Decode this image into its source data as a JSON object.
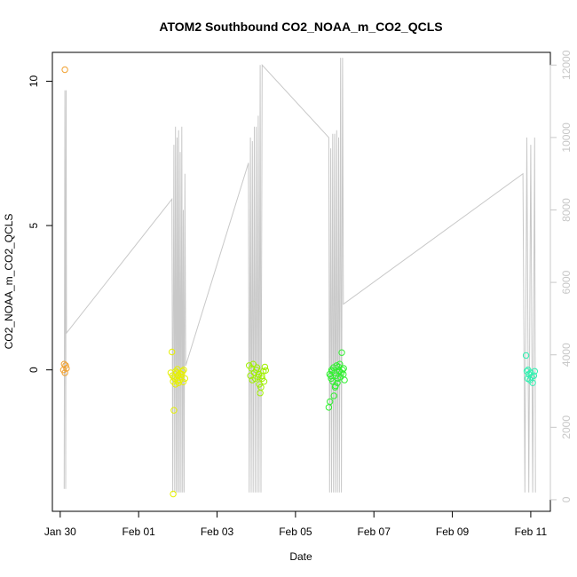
{
  "chart_data": {
    "type": "scatter",
    "title": "ATOM2 Southbound CO2_NOAA_m_CO2_QCLS",
    "xlabel": "Date",
    "ylabel": "CO2_NOAA_m_CO2_QCLS",
    "y2label": "",
    "xlim": [
      -0.2,
      12.5
    ],
    "ylim": [
      -4.9,
      11.0
    ],
    "y2lim": [
      -320,
      12350
    ],
    "x_unit": "days since Jan 30",
    "x_ticks": [
      {
        "value": 0,
        "label": "Jan 30"
      },
      {
        "value": 2,
        "label": "Feb 01"
      },
      {
        "value": 4,
        "label": "Feb 03"
      },
      {
        "value": 6,
        "label": "Feb 05"
      },
      {
        "value": 8,
        "label": "Feb 07"
      },
      {
        "value": 10,
        "label": "Feb 09"
      },
      {
        "value": 12,
        "label": "Feb 11"
      }
    ],
    "y_ticks": [
      {
        "value": 0,
        "label": "0"
      },
      {
        "value": 5,
        "label": "5"
      },
      {
        "value": 10,
        "label": "10"
      }
    ],
    "y2_ticks": [
      {
        "value": 0,
        "label": "0"
      },
      {
        "value": 2000,
        "label": "2000"
      },
      {
        "value": 4000,
        "label": "4000"
      },
      {
        "value": 6000,
        "label": "6000"
      },
      {
        "value": 8000,
        "label": "8000"
      },
      {
        "value": 10000,
        "label": "10000"
      },
      {
        "value": 12000,
        "label": "12000"
      }
    ],
    "grid": false,
    "legend": "none",
    "altitude_line_color": "#c8c8c8",
    "series": [
      {
        "color": "#f0a030",
        "points": [
          [
            0.12,
            10.4
          ],
          [
            0.1,
            0.2
          ],
          [
            0.14,
            0.15
          ],
          [
            0.16,
            0.05
          ],
          [
            0.08,
            0.0
          ],
          [
            0.12,
            -0.1
          ]
        ]
      },
      {
        "color": "#e6f000",
        "points": [
          [
            2.85,
            0.62
          ],
          [
            2.9,
            -1.4
          ],
          [
            2.88,
            -4.3
          ],
          [
            2.82,
            -0.1
          ],
          [
            2.9,
            -0.25
          ],
          [
            2.95,
            -0.05
          ],
          [
            3.0,
            -0.2
          ],
          [
            3.05,
            -0.35
          ],
          [
            3.1,
            -0.15
          ],
          [
            3.15,
            0.0
          ],
          [
            2.88,
            -0.4
          ],
          [
            2.92,
            -0.3
          ],
          [
            2.97,
            -0.1
          ],
          [
            3.02,
            -0.45
          ],
          [
            3.08,
            -0.25
          ],
          [
            3.12,
            -0.05
          ],
          [
            3.18,
            -0.3
          ],
          [
            2.86,
            -0.2
          ],
          [
            2.94,
            -0.5
          ],
          [
            3.0,
            -0.38
          ],
          [
            3.06,
            -0.12
          ],
          [
            3.14,
            -0.42
          ],
          [
            2.99,
            0.02
          ]
        ]
      },
      {
        "color": "#a0f000",
        "points": [
          [
            4.82,
            0.15
          ],
          [
            4.85,
            -0.2
          ],
          [
            4.88,
            0.05
          ],
          [
            4.9,
            -0.35
          ],
          [
            4.95,
            -0.1
          ],
          [
            5.0,
            0.0
          ],
          [
            5.05,
            -0.25
          ],
          [
            5.08,
            -0.5
          ],
          [
            5.1,
            -0.8
          ],
          [
            5.12,
            -0.6
          ],
          [
            5.15,
            -0.3
          ],
          [
            5.18,
            -0.05
          ],
          [
            5.2,
            -0.4
          ],
          [
            5.22,
            0.1
          ],
          [
            4.92,
            0.2
          ],
          [
            4.97,
            -0.3
          ],
          [
            5.02,
            0.08
          ],
          [
            5.06,
            -0.15
          ],
          [
            5.14,
            -0.2
          ],
          [
            5.24,
            -0.02
          ]
        ]
      },
      {
        "color": "#30f030",
        "points": [
          [
            6.85,
            -1.3
          ],
          [
            6.88,
            -1.1
          ],
          [
            6.9,
            -0.2
          ],
          [
            6.92,
            0.0
          ],
          [
            6.95,
            -0.4
          ],
          [
            6.98,
            -0.9
          ],
          [
            7.0,
            -0.1
          ],
          [
            7.02,
            -0.55
          ],
          [
            7.05,
            0.15
          ],
          [
            7.08,
            -0.3
          ],
          [
            7.1,
            0.1
          ],
          [
            7.12,
            -0.05
          ],
          [
            7.15,
            -0.25
          ],
          [
            7.18,
            0.6
          ],
          [
            7.2,
            0.0
          ],
          [
            7.22,
            -0.15
          ],
          [
            7.25,
            -0.35
          ],
          [
            6.87,
            -0.15
          ],
          [
            6.93,
            -0.05
          ],
          [
            6.97,
            0.08
          ],
          [
            7.03,
            -0.2
          ],
          [
            7.07,
            -0.45
          ],
          [
            7.13,
            0.2
          ],
          [
            7.17,
            -0.1
          ],
          [
            7.23,
            0.05
          ],
          [
            6.91,
            -0.3
          ],
          [
            7.01,
            -0.6
          ],
          [
            7.11,
            -0.02
          ]
        ]
      },
      {
        "color": "#30f0b0",
        "points": [
          [
            11.88,
            0.5
          ],
          [
            11.9,
            -0.05
          ],
          [
            11.92,
            -0.3
          ],
          [
            11.95,
            -0.15
          ],
          [
            11.98,
            -0.35
          ],
          [
            12.0,
            -0.1
          ],
          [
            12.02,
            -0.25
          ],
          [
            12.05,
            -0.45
          ],
          [
            12.08,
            -0.2
          ],
          [
            12.1,
            -0.05
          ],
          [
            11.93,
            0.0
          ]
        ]
      }
    ],
    "altitude_series": [
      [
        0.1,
        300
      ],
      [
        0.12,
        11300
      ],
      [
        0.14,
        300
      ],
      [
        0.15,
        11300
      ],
      [
        0.16,
        4600
      ],
      [
        2.85,
        8300
      ],
      [
        2.87,
        200
      ],
      [
        2.9,
        9800
      ],
      [
        2.92,
        200
      ],
      [
        2.94,
        10300
      ],
      [
        2.96,
        200
      ],
      [
        2.98,
        10000
      ],
      [
        3.0,
        200
      ],
      [
        3.02,
        10200
      ],
      [
        3.04,
        200
      ],
      [
        3.06,
        9600
      ],
      [
        3.08,
        200
      ],
      [
        3.1,
        10300
      ],
      [
        3.12,
        200
      ],
      [
        3.14,
        8000
      ],
      [
        3.16,
        200
      ],
      [
        3.18,
        9000
      ],
      [
        3.2,
        3700
      ],
      [
        4.8,
        9300
      ],
      [
        4.82,
        200
      ],
      [
        4.85,
        10000
      ],
      [
        4.87,
        200
      ],
      [
        4.9,
        9900
      ],
      [
        4.92,
        200
      ],
      [
        4.95,
        10300
      ],
      [
        4.97,
        200
      ],
      [
        5.0,
        10300
      ],
      [
        5.02,
        200
      ],
      [
        5.05,
        10600
      ],
      [
        5.07,
        200
      ],
      [
        5.1,
        12000
      ],
      [
        5.12,
        200
      ],
      [
        5.15,
        12000
      ],
      [
        6.85,
        10000
      ],
      [
        6.87,
        200
      ],
      [
        6.9,
        9700
      ],
      [
        6.92,
        200
      ],
      [
        6.95,
        10100
      ],
      [
        6.97,
        200
      ],
      [
        7.0,
        10100
      ],
      [
        7.02,
        200
      ],
      [
        7.05,
        10200
      ],
      [
        7.07,
        200
      ],
      [
        7.1,
        10000
      ],
      [
        7.12,
        200
      ],
      [
        7.15,
        12200
      ],
      [
        7.17,
        200
      ],
      [
        7.2,
        12200
      ],
      [
        7.22,
        5400
      ],
      [
        11.8,
        9000
      ],
      [
        11.85,
        200
      ],
      [
        11.9,
        10000
      ],
      [
        11.95,
        200
      ],
      [
        12.0,
        9800
      ],
      [
        12.05,
        200
      ],
      [
        12.1,
        10000
      ],
      [
        12.12,
        200
      ]
    ]
  }
}
